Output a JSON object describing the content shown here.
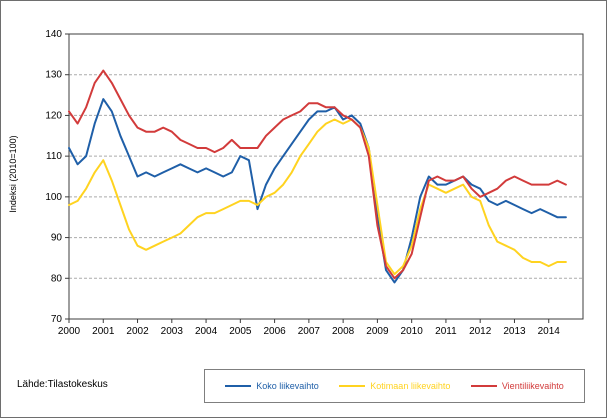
{
  "figure": {
    "ylabel": "Indeksi (2010=100)",
    "source_label": "Lähde:Tilastokeskus"
  },
  "legend": {
    "items": [
      {
        "label": "Koko liikevaihto",
        "color": "#1F5FA8"
      },
      {
        "label": "Kotimaan liikevaihto",
        "color": "#FFD320"
      },
      {
        "label": "Vientiliikevaihto",
        "color": "#D23B3B"
      }
    ]
  },
  "chart_data": {
    "type": "line",
    "title": "",
    "xlabel": "",
    "ylabel": "Indeksi (2010=100)",
    "ylim": [
      70,
      140
    ],
    "xlim": [
      2000,
      2015
    ],
    "yticks": [
      70,
      80,
      90,
      100,
      110,
      120,
      130,
      140
    ],
    "xticks": [
      2000,
      2001,
      2002,
      2003,
      2004,
      2005,
      2006,
      2007,
      2008,
      2009,
      2010,
      2011,
      2012,
      2013,
      2014
    ],
    "grid": "horizontal-dashed",
    "legend_position": "bottom",
    "x": [
      2000.0,
      2000.25,
      2000.5,
      2000.75,
      2001.0,
      2001.25,
      2001.5,
      2001.75,
      2002.0,
      2002.25,
      2002.5,
      2002.75,
      2003.0,
      2003.25,
      2003.5,
      2003.75,
      2004.0,
      2004.25,
      2004.5,
      2004.75,
      2005.0,
      2005.25,
      2005.5,
      2005.75,
      2006.0,
      2006.25,
      2006.5,
      2006.75,
      2007.0,
      2007.25,
      2007.5,
      2007.75,
      2008.0,
      2008.25,
      2008.5,
      2008.75,
      2009.0,
      2009.25,
      2009.5,
      2009.75,
      2010.0,
      2010.25,
      2010.5,
      2010.75,
      2011.0,
      2011.25,
      2011.5,
      2011.75,
      2012.0,
      2012.25,
      2012.5,
      2012.75,
      2013.0,
      2013.25,
      2013.5,
      2013.75,
      2014.0,
      2014.25,
      2014.5
    ],
    "series": [
      {
        "name": "Koko liikevaihto",
        "color": "#1F5FA8",
        "values": [
          112,
          108,
          110,
          118,
          124,
          121,
          115,
          110,
          105,
          106,
          105,
          106,
          107,
          108,
          107,
          106,
          107,
          106,
          105,
          106,
          110,
          109,
          97,
          103,
          107,
          110,
          113,
          116,
          119,
          121,
          121,
          122,
          119,
          120,
          118,
          112,
          95,
          82,
          79,
          82,
          90,
          100,
          105,
          103,
          103,
          104,
          105,
          103,
          102,
          99,
          98,
          99,
          98,
          97,
          96,
          97,
          96,
          95,
          95
        ]
      },
      {
        "name": "Kotimaan liikevaihto",
        "color": "#FFD320",
        "values": [
          98,
          99,
          102,
          106,
          109,
          104,
          98,
          92,
          88,
          87,
          88,
          89,
          90,
          91,
          93,
          95,
          96,
          96,
          97,
          98,
          99,
          99,
          98,
          100,
          101,
          103,
          106,
          110,
          113,
          116,
          118,
          119,
          118,
          119,
          117,
          112,
          98,
          84,
          81,
          83,
          88,
          97,
          103,
          102,
          101,
          102,
          103,
          100,
          99,
          93,
          89,
          88,
          87,
          85,
          84,
          84,
          83,
          84,
          84
        ]
      },
      {
        "name": "Vientiliikevaihto",
        "color": "#D23B3B",
        "values": [
          121,
          118,
          122,
          128,
          131,
          128,
          124,
          120,
          117,
          116,
          116,
          117,
          116,
          114,
          113,
          112,
          112,
          111,
          112,
          114,
          112,
          112,
          112,
          115,
          117,
          119,
          120,
          121,
          123,
          123,
          122,
          122,
          120,
          119,
          117,
          110,
          93,
          83,
          80,
          82,
          86,
          95,
          104,
          105,
          104,
          104,
          105,
          102,
          100,
          101,
          102,
          104,
          105,
          104,
          103,
          103,
          103,
          104,
          103
        ]
      }
    ]
  }
}
